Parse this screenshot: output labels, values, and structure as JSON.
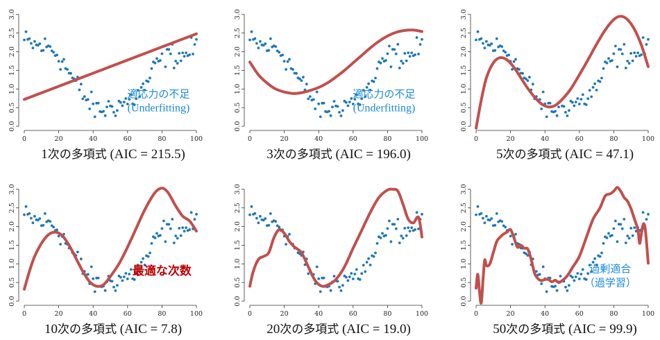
{
  "colors": {
    "points": "#1f77b4",
    "fit": "#c0504d",
    "annotation": "#1a8ad6",
    "best": "#c00000"
  },
  "chart_data": [
    {
      "type": "scatter",
      "caption": {
        "label": "1次の多項式 (AIC = ",
        "aic": "215.5",
        "close": ")",
        "aic_highlight": false
      },
      "annotation": {
        "line1": "適応力の不足",
        "line2": "(Underfitting)"
      },
      "xlim": [
        0,
        100
      ],
      "ylim": [
        0,
        3.2
      ],
      "xticks": [
        "0",
        "20",
        "40",
        "60",
        "80",
        "100"
      ],
      "yticks": [
        "0.0",
        "0.5",
        "1.0",
        "1.5",
        "2.0",
        "2.5",
        "3.0"
      ],
      "fit": {
        "x": [
          0,
          100
        ],
        "y": [
          0.72,
          2.48
        ]
      }
    },
    {
      "type": "scatter",
      "caption": {
        "label": "3次の多項式 (AIC = ",
        "aic": "196.0",
        "close": ")",
        "aic_highlight": false
      },
      "annotation": {
        "line1": "適応力の不足",
        "line2": "(Underfitting)"
      },
      "xlim": [
        0,
        100
      ],
      "ylim": [
        0,
        3.2
      ],
      "xticks": [
        "0",
        "20",
        "40",
        "60",
        "80",
        "100"
      ],
      "yticks": [
        "0.0",
        "0.5",
        "1.0",
        "1.5",
        "2.0",
        "2.5",
        "3.0"
      ],
      "fit": {
        "x": [
          0,
          5,
          10,
          15,
          20,
          25,
          30,
          35,
          40,
          45,
          50,
          55,
          60,
          65,
          70,
          75,
          80,
          85,
          90,
          95,
          100
        ],
        "y": [
          1.72,
          1.38,
          1.16,
          1.0,
          0.92,
          0.88,
          0.9,
          0.96,
          1.04,
          1.16,
          1.32,
          1.5,
          1.7,
          1.9,
          2.1,
          2.28,
          2.42,
          2.52,
          2.57,
          2.58,
          2.54
        ]
      }
    },
    {
      "type": "scatter",
      "caption": {
        "label": "5次の多項式 (AIC = ",
        "aic": "47.1",
        "close": ")",
        "aic_highlight": false
      },
      "annotation": null,
      "xlim": [
        0,
        100
      ],
      "ylim": [
        0,
        3.2
      ],
      "xticks": [
        "0",
        "20",
        "40",
        "60",
        "80",
        "100"
      ],
      "yticks": [
        "0.0",
        "0.5",
        "1.0",
        "1.5",
        "2.0",
        "2.5",
        "3.0"
      ],
      "fit": {
        "x": [
          0,
          3,
          6,
          10,
          14,
          18,
          22,
          26,
          30,
          34,
          38,
          42,
          46,
          50,
          55,
          60,
          65,
          70,
          75,
          80,
          84,
          88,
          92,
          96,
          100
        ],
        "y": [
          -0.05,
          0.7,
          1.3,
          1.7,
          1.84,
          1.78,
          1.58,
          1.3,
          1.02,
          0.78,
          0.6,
          0.52,
          0.56,
          0.72,
          1.0,
          1.38,
          1.78,
          2.2,
          2.58,
          2.86,
          2.95,
          2.86,
          2.6,
          2.18,
          1.6
        ]
      }
    },
    {
      "type": "scatter",
      "caption": {
        "label": "10次の多項式 (",
        "aic": "AIC = 7.8",
        "close": ")",
        "aic_highlight": true
      },
      "annotation": {
        "best": "最適な次数"
      },
      "xlim": [
        0,
        100
      ],
      "ylim": [
        0,
        3.2
      ],
      "xticks": [
        "0",
        "20",
        "40",
        "60",
        "80",
        "100"
      ],
      "yticks": [
        "0.0",
        "0.5",
        "1.0",
        "1.5",
        "2.0",
        "2.5",
        "3.0"
      ],
      "fit": {
        "x": [
          0,
          3,
          6,
          10,
          14,
          18,
          22,
          26,
          30,
          34,
          38,
          42,
          46,
          50,
          55,
          60,
          65,
          70,
          75,
          78,
          81,
          84,
          88,
          92,
          96,
          100
        ],
        "y": [
          0.32,
          0.8,
          1.2,
          1.55,
          1.78,
          1.85,
          1.76,
          1.5,
          1.15,
          0.8,
          0.52,
          0.4,
          0.44,
          0.66,
          1.0,
          1.45,
          1.95,
          2.45,
          2.85,
          3.0,
          3.02,
          2.88,
          2.55,
          2.28,
          2.15,
          1.88
        ]
      }
    },
    {
      "type": "scatter",
      "caption": {
        "label": "20次の多項式 (AIC = ",
        "aic": "19.0",
        "close": ")",
        "aic_highlight": false
      },
      "annotation": null,
      "xlim": [
        0,
        100
      ],
      "ylim": [
        0,
        3.2
      ],
      "xticks": [
        "0",
        "20",
        "40",
        "60",
        "80",
        "100"
      ],
      "yticks": [
        "0.0",
        "0.5",
        "1.0",
        "1.5",
        "2.0",
        "2.5",
        "3.0"
      ],
      "fit": {
        "x": [
          0,
          2,
          5,
          8,
          11,
          14,
          17,
          20,
          23,
          26,
          30,
          34,
          38,
          42,
          46,
          50,
          55,
          60,
          65,
          70,
          75,
          80,
          83,
          86,
          89,
          92,
          95,
          98,
          100
        ],
        "y": [
          0.4,
          0.8,
          1.12,
          1.2,
          1.3,
          1.7,
          1.92,
          1.82,
          1.6,
          1.45,
          1.3,
          0.92,
          0.55,
          0.4,
          0.45,
          0.58,
          0.92,
          1.42,
          1.9,
          2.38,
          2.78,
          2.98,
          3.0,
          2.95,
          2.6,
          2.2,
          2.1,
          2.25,
          1.72
        ]
      }
    },
    {
      "type": "scatter",
      "caption": {
        "label": "50次の多項式 (AIC = ",
        "aic": "99.9",
        "close": ")",
        "aic_highlight": false
      },
      "annotation": {
        "line1": "過剰適合",
        "line2": "（過学習）"
      },
      "xlim": [
        0,
        100
      ],
      "ylim": [
        0,
        3.2
      ],
      "xticks": [
        "0",
        "20",
        "40",
        "60",
        "80",
        "100"
      ],
      "yticks": [
        "0.0",
        "0.5",
        "1.0",
        "1.5",
        "2.0",
        "2.5",
        "3.0"
      ],
      "fit": {
        "x": [
          0,
          1,
          2,
          3,
          4,
          5,
          6,
          8,
          10,
          12,
          14,
          16,
          18,
          20,
          22,
          24,
          26,
          28,
          30,
          32,
          34,
          36,
          38,
          40,
          42,
          44,
          46,
          48,
          50,
          53,
          56,
          60,
          64,
          68,
          72,
          75,
          78,
          80,
          82,
          84,
          86,
          88,
          90,
          92,
          94,
          95,
          96,
          97,
          98,
          99,
          100
        ],
        "y": [
          0.35,
          0.72,
          0.25,
          -0.05,
          0.55,
          1.1,
          0.95,
          1.0,
          1.3,
          1.6,
          1.72,
          1.8,
          1.85,
          1.92,
          1.7,
          1.45,
          1.5,
          1.42,
          1.4,
          1.12,
          0.75,
          0.6,
          0.55,
          0.58,
          0.58,
          0.52,
          0.56,
          0.5,
          0.55,
          0.68,
          0.9,
          1.2,
          1.7,
          2.2,
          2.5,
          2.82,
          2.88,
          2.95,
          3.05,
          2.95,
          2.78,
          2.68,
          2.48,
          2.2,
          1.92,
          1.55,
          1.8,
          2.05,
          2.02,
          1.6,
          1.02
        ]
      }
    }
  ]
}
